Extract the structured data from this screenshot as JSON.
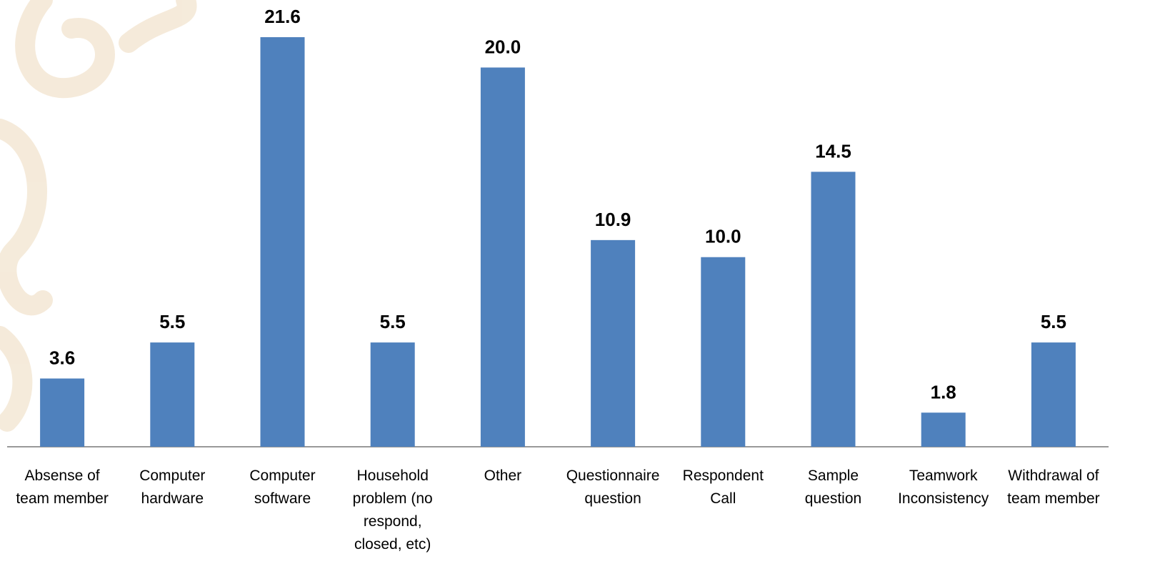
{
  "chart_data": {
    "type": "bar",
    "categories": [
      "Absense of team member",
      "Computer hardware",
      "Computer software",
      "Household problem (no respond, closed, etc)",
      "Other",
      "Questionnaire question",
      "Respondent Call",
      "Sample question",
      "Teamwork Inconsistency",
      "Withdrawal of team member"
    ],
    "values": [
      3.6,
      5.5,
      21.6,
      5.5,
      20.0,
      10.9,
      10.0,
      14.5,
      1.8,
      5.5
    ],
    "value_labels": [
      "3.6",
      "5.5",
      "21.6",
      "5.5",
      "20.0",
      "10.9",
      "10.0",
      "14.5",
      "1.8",
      "5.5"
    ],
    "color": "#4f81bd"
  }
}
